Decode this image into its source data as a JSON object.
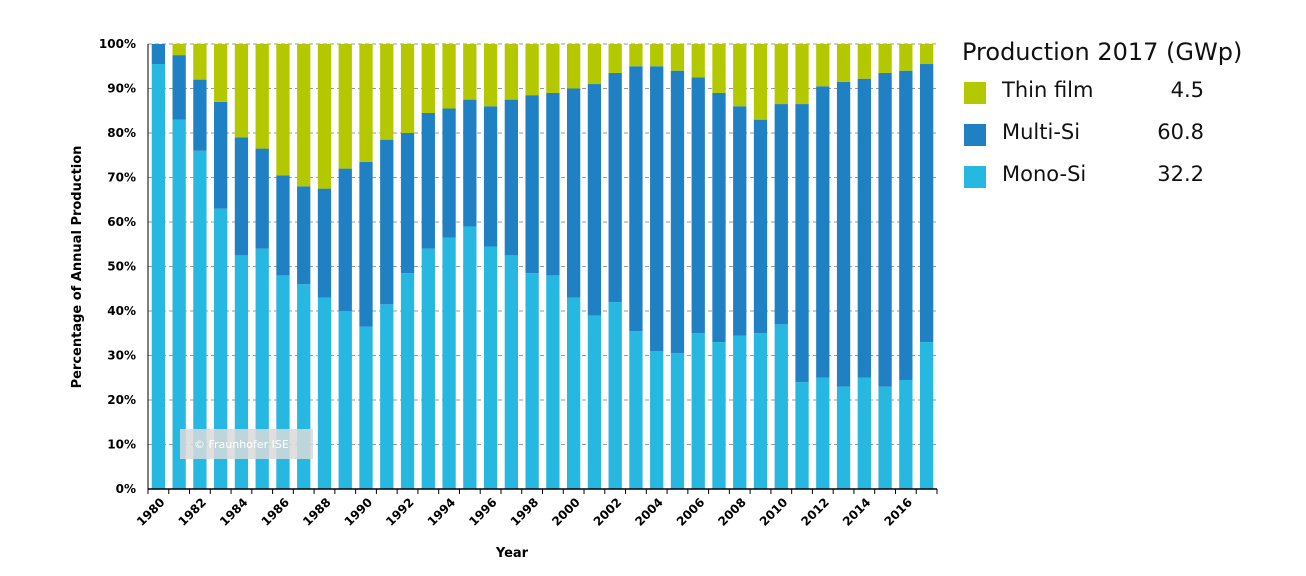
{
  "chart_data": {
    "type": "bar",
    "stacked": true,
    "ylabel": "Percentage of Annual Production",
    "xlabel": "Year",
    "ylim": [
      0,
      100
    ],
    "y_ticks": [
      "0%",
      "10%",
      "20%",
      "30%",
      "40%",
      "50%",
      "60%",
      "70%",
      "80%",
      "90%",
      "100%"
    ],
    "x_tick_labels": [
      "1980",
      "1982",
      "1984",
      "1986",
      "1988",
      "1990",
      "1992",
      "1994",
      "1996",
      "1998",
      "2000",
      "2002",
      "2004",
      "2006",
      "2008",
      "2010",
      "2012",
      "2014",
      "2016"
    ],
    "categories": [
      "1980",
      "1981",
      "1982",
      "1983",
      "1984",
      "1985",
      "1986",
      "1987",
      "1988",
      "1989",
      "1990",
      "1991",
      "1992",
      "1993",
      "1994",
      "1995",
      "1996",
      "1997",
      "1998",
      "1999",
      "2000",
      "2001",
      "2002",
      "2003",
      "2004",
      "2005",
      "2006",
      "2007",
      "2008",
      "2009",
      "2010",
      "2011",
      "2012",
      "2013",
      "2014",
      "2015",
      "2016",
      "2017"
    ],
    "series": [
      {
        "name": "Mono-Si",
        "color": "#27b8e2",
        "values": [
          95.5,
          83,
          76,
          63,
          52.5,
          54,
          48,
          46,
          43,
          40,
          36.5,
          41.5,
          48.5,
          54,
          56.5,
          59,
          54.5,
          52.5,
          48.5,
          48,
          43,
          39,
          42,
          35.5,
          31,
          30.5,
          35,
          33,
          34.5,
          35,
          37,
          24,
          25,
          23,
          25,
          23,
          24.5,
          33
        ]
      },
      {
        "name": "Multi-Si",
        "color": "#1f80c3",
        "values": [
          4.5,
          14.5,
          16,
          24,
          26.5,
          22.5,
          22.5,
          22,
          24.5,
          32,
          37,
          37,
          31.5,
          30.5,
          29,
          28.5,
          31.5,
          35,
          40,
          41,
          47,
          52,
          51.5,
          59.5,
          64,
          63.5,
          57.5,
          56,
          51.5,
          48,
          49.5,
          62.5,
          65.5,
          68.5,
          67.2,
          70.5,
          69.5,
          62.5
        ]
      },
      {
        "name": "Thin film",
        "color": "#b4c800",
        "values": [
          0,
          2.5,
          8,
          13,
          21,
          23.5,
          29.5,
          32,
          32.5,
          28,
          26.5,
          21.5,
          20,
          15.5,
          14.5,
          12.5,
          14,
          12.5,
          11.5,
          11,
          10,
          9,
          6.5,
          5,
          5,
          6,
          7.5,
          11,
          14,
          17,
          13.5,
          13.5,
          9.5,
          8.5,
          7.8,
          6.5,
          6,
          4.5
        ]
      }
    ],
    "legend": {
      "title": "Production 2017 (GWp)",
      "placement": "right",
      "items": [
        {
          "label": "Thin film",
          "value": "4.5",
          "color": "#b4c800"
        },
        {
          "label": "Multi-Si",
          "value": "60.8",
          "color": "#1f80c3"
        },
        {
          "label": "Mono-Si",
          "value": "32.2",
          "color": "#27b8e2"
        }
      ]
    },
    "grid": "horizontal dashed",
    "watermark": "© Fraunhofer ISE"
  }
}
